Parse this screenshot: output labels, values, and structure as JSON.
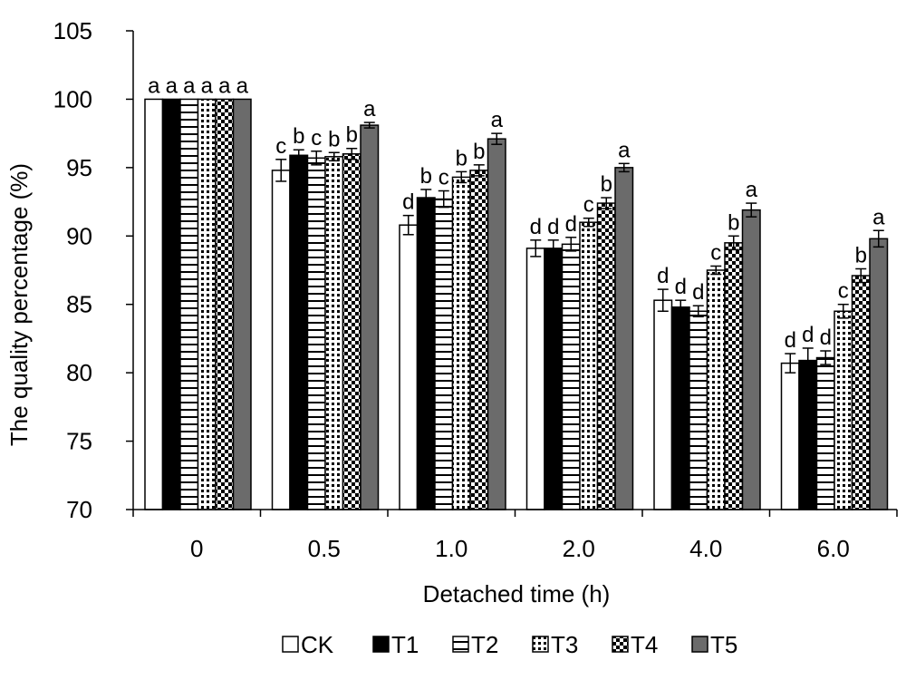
{
  "chart_data": {
    "type": "bar",
    "xlabel": "Detached time (h)",
    "ylabel": "The quality percentage (%)",
    "ylim": [
      70,
      105
    ],
    "yticks": [
      70,
      75,
      80,
      85,
      90,
      95,
      100,
      105
    ],
    "categories": [
      "0",
      "0.5",
      "1.0",
      "2.0",
      "4.0",
      "6.0"
    ],
    "legend_position": "bottom",
    "series": [
      {
        "name": "CK",
        "pattern": "white",
        "values": [
          100,
          94.8,
          90.8,
          89.1,
          85.3,
          80.7
        ],
        "errors": [
          0,
          0.8,
          0.7,
          0.6,
          0.8,
          0.7
        ],
        "sig": [
          "a",
          "c",
          "d",
          "d",
          "d",
          "d"
        ]
      },
      {
        "name": "T1",
        "pattern": "black",
        "values": [
          100,
          95.9,
          92.8,
          89.1,
          84.8,
          80.9
        ],
        "errors": [
          0,
          0.4,
          0.6,
          0.6,
          0.5,
          0.9
        ],
        "sig": [
          "a",
          "b",
          "b",
          "d",
          "d",
          "d"
        ]
      },
      {
        "name": "T2",
        "pattern": "hlines",
        "values": [
          100,
          95.7,
          92.7,
          89.4,
          84.5,
          81.1
        ],
        "errors": [
          0,
          0.5,
          0.6,
          0.5,
          0.4,
          0.5
        ],
        "sig": [
          "a",
          "c",
          "c",
          "d",
          "d",
          "d"
        ]
      },
      {
        "name": "T3",
        "pattern": "diagonal",
        "values": [
          100,
          95.8,
          94.3,
          91.0,
          87.5,
          84.5
        ],
        "errors": [
          0,
          0.3,
          0.4,
          0.3,
          0.3,
          0.5
        ],
        "sig": [
          "a",
          "b",
          "b",
          "c",
          "c",
          "c"
        ]
      },
      {
        "name": "T4",
        "pattern": "checker",
        "values": [
          100,
          96.0,
          94.8,
          92.4,
          89.5,
          87.1
        ],
        "errors": [
          0,
          0.4,
          0.4,
          0.4,
          0.5,
          0.5
        ],
        "sig": [
          "a",
          "b",
          "b",
          "b",
          "b",
          "b"
        ]
      },
      {
        "name": "T5",
        "pattern": "gray",
        "values": [
          100,
          98.1,
          97.1,
          95.0,
          91.9,
          89.8
        ],
        "errors": [
          0,
          0.2,
          0.4,
          0.3,
          0.5,
          0.6
        ],
        "sig": [
          "a",
          "a",
          "a",
          "a",
          "a",
          "a"
        ]
      }
    ]
  }
}
